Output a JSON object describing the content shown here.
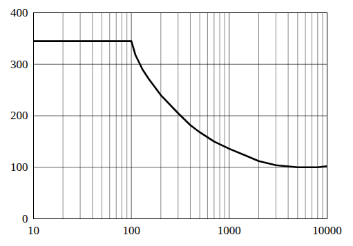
{
  "chart_data": {
    "type": "line",
    "x": [
      10,
      100,
      110,
      130,
      150,
      200,
      300,
      400,
      500,
      700,
      1000,
      1500,
      2000,
      3000,
      5000,
      8000,
      10000
    ],
    "values": [
      345,
      345,
      318,
      290,
      272,
      240,
      205,
      182,
      168,
      150,
      136,
      122,
      112,
      104,
      100,
      100,
      102
    ],
    "color": "#000000",
    "xlim": [
      10,
      10000
    ],
    "ylim": [
      0,
      400
    ],
    "xticks": [
      10,
      100,
      1000,
      10000
    ],
    "yticks": [
      0,
      100,
      200,
      300,
      400
    ],
    "log": "x",
    "grid": true
  }
}
